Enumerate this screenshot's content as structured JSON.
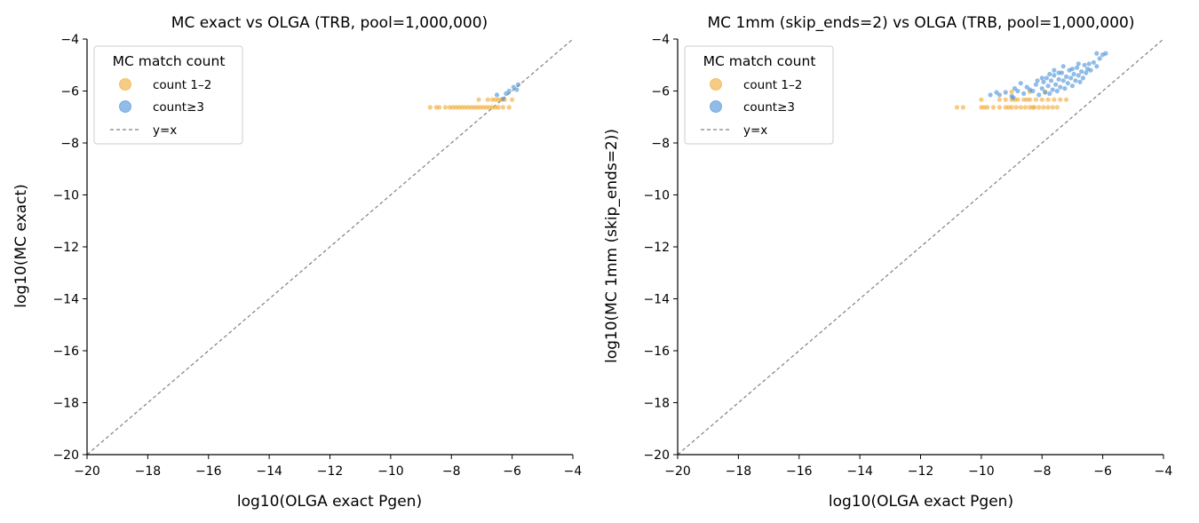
{
  "colors": {
    "count12": "#f0a830",
    "count3": "#4a90d9",
    "diag": "#808080",
    "axis": "#000000"
  },
  "chart_data": [
    {
      "type": "scatter",
      "title": "MC exact vs OLGA  (TRB, pool=1,000,000)",
      "xlabel": "log10(OLGA exact Pgen)",
      "ylabel": "log10(MC exact)",
      "xlim": [
        -20,
        -4
      ],
      "ylim": [
        -20,
        -4
      ],
      "xticks": [
        -20,
        -18,
        -16,
        -14,
        -12,
        -10,
        -8,
        -6,
        -4
      ],
      "yticks": [
        -20,
        -18,
        -16,
        -14,
        -12,
        -10,
        -8,
        -6,
        -4
      ],
      "xtick_labels": [
        "−20",
        "−18",
        "−16",
        "−14",
        "−12",
        "−10",
        "−8",
        "−6",
        "−4"
      ],
      "ytick_labels": [
        "−20",
        "−18",
        "−16",
        "−14",
        "−12",
        "−10",
        "−8",
        "−6",
        "−4"
      ],
      "grid": false,
      "legend": {
        "title": "MC match count",
        "placement": "upper-left",
        "entries": [
          "count 1–2",
          "count≥3",
          "y=x"
        ]
      },
      "diagonal": {
        "name": "y=x",
        "style": "dashed"
      },
      "series": [
        {
          "name": "count 1–2",
          "color": "#f0a830",
          "points": [
            [
              -8.7,
              -6.63
            ],
            [
              -8.5,
              -6.63
            ],
            [
              -8.4,
              -6.63
            ],
            [
              -8.2,
              -6.63
            ],
            [
              -8.05,
              -6.63
            ],
            [
              -7.95,
              -6.63
            ],
            [
              -7.85,
              -6.63
            ],
            [
              -7.75,
              -6.63
            ],
            [
              -7.65,
              -6.63
            ],
            [
              -7.55,
              -6.63
            ],
            [
              -7.45,
              -6.63
            ],
            [
              -7.35,
              -6.63
            ],
            [
              -7.25,
              -6.63
            ],
            [
              -7.15,
              -6.63
            ],
            [
              -7.05,
              -6.63
            ],
            [
              -6.95,
              -6.63
            ],
            [
              -6.85,
              -6.63
            ],
            [
              -6.75,
              -6.63
            ],
            [
              -6.65,
              -6.63
            ],
            [
              -6.55,
              -6.63
            ],
            [
              -6.45,
              -6.63
            ],
            [
              -6.3,
              -6.63
            ],
            [
              -6.1,
              -6.63
            ],
            [
              -7.1,
              -6.33
            ],
            [
              -6.8,
              -6.33
            ],
            [
              -6.65,
              -6.33
            ],
            [
              -6.55,
              -6.33
            ],
            [
              -6.45,
              -6.33
            ],
            [
              -6.35,
              -6.33
            ],
            [
              -6.25,
              -6.33
            ],
            [
              -6.0,
              -6.33
            ]
          ]
        },
        {
          "name": "count≥3",
          "color": "#4a90d9",
          "points": [
            [
              -6.5,
              -6.15
            ],
            [
              -6.3,
              -6.3
            ],
            [
              -6.1,
              -6.0
            ],
            [
              -5.95,
              -5.85
            ],
            [
              -5.8,
              -5.75
            ],
            [
              -5.85,
              -5.95
            ],
            [
              -6.2,
              -6.1
            ]
          ]
        }
      ]
    },
    {
      "type": "scatter",
      "title": "MC 1mm (skip_ends=2) vs OLGA  (TRB, pool=1,000,000)",
      "xlabel": "log10(OLGA exact Pgen)",
      "ylabel": "log10(MC 1mm (skip_ends=2))",
      "xlim": [
        -20,
        -4
      ],
      "ylim": [
        -20,
        -4
      ],
      "xticks": [
        -20,
        -18,
        -16,
        -14,
        -12,
        -10,
        -8,
        -6,
        -4
      ],
      "yticks": [
        -20,
        -18,
        -16,
        -14,
        -12,
        -10,
        -8,
        -6,
        -4
      ],
      "xtick_labels": [
        "−20",
        "−18",
        "−16",
        "−14",
        "−12",
        "−10",
        "−8",
        "−6",
        "−4"
      ],
      "ytick_labels": [
        "−20",
        "−18",
        "−16",
        "−14",
        "−12",
        "−10",
        "−8",
        "−6",
        "−4"
      ],
      "grid": false,
      "legend": {
        "title": "MC match count",
        "placement": "upper-left",
        "entries": [
          "count 1–2",
          "count≥3",
          "y=x"
        ]
      },
      "diagonal": {
        "name": "y=x",
        "style": "dashed"
      },
      "series": [
        {
          "name": "count 1–2",
          "color": "#f0a830",
          "points": [
            [
              -10.8,
              -6.63
            ],
            [
              -10.6,
              -6.63
            ],
            [
              -10.0,
              -6.63
            ],
            [
              -9.8,
              -6.63
            ],
            [
              -9.6,
              -6.63
            ],
            [
              -9.4,
              -6.63
            ],
            [
              -9.2,
              -6.63
            ],
            [
              -9.0,
              -6.63
            ],
            [
              -8.85,
              -6.63
            ],
            [
              -8.7,
              -6.63
            ],
            [
              -8.55,
              -6.63
            ],
            [
              -8.4,
              -6.63
            ],
            [
              -8.25,
              -6.63
            ],
            [
              -8.1,
              -6.63
            ],
            [
              -7.95,
              -6.63
            ],
            [
              -7.8,
              -6.63
            ],
            [
              -7.65,
              -6.63
            ],
            [
              -7.5,
              -6.63
            ],
            [
              -9.9,
              -6.63
            ],
            [
              -9.1,
              -6.63
            ],
            [
              -8.3,
              -6.63
            ],
            [
              -10.0,
              -6.33
            ],
            [
              -9.4,
              -6.33
            ],
            [
              -9.2,
              -6.33
            ],
            [
              -9.0,
              -6.33
            ],
            [
              -8.8,
              -6.33
            ],
            [
              -8.6,
              -6.33
            ],
            [
              -8.4,
              -6.33
            ],
            [
              -8.2,
              -6.33
            ],
            [
              -8.0,
              -6.33
            ],
            [
              -7.8,
              -6.33
            ],
            [
              -7.6,
              -6.33
            ],
            [
              -7.4,
              -6.33
            ],
            [
              -7.2,
              -6.33
            ],
            [
              -8.9,
              -6.33
            ],
            [
              -8.5,
              -6.33
            ],
            [
              -9.0,
              -6.03
            ],
            [
              -8.4,
              -6.03
            ],
            [
              -7.9,
              -6.03
            ]
          ]
        },
        {
          "name": "count≥3",
          "color": "#4a90d9",
          "points": [
            [
              -9.7,
              -6.15
            ],
            [
              -9.4,
              -6.15
            ],
            [
              -9.2,
              -6.05
            ],
            [
              -9.0,
              -6.2
            ],
            [
              -8.8,
              -6.0
            ],
            [
              -8.9,
              -5.9
            ],
            [
              -8.6,
              -6.1
            ],
            [
              -8.5,
              -5.85
            ],
            [
              -8.3,
              -6.0
            ],
            [
              -8.2,
              -5.75
            ],
            [
              -8.1,
              -6.15
            ],
            [
              -8.0,
              -5.9
            ],
            [
              -7.95,
              -5.65
            ],
            [
              -7.9,
              -6.05
            ],
            [
              -7.85,
              -5.5
            ],
            [
              -7.8,
              -5.8
            ],
            [
              -7.75,
              -6.1
            ],
            [
              -7.7,
              -5.6
            ],
            [
              -7.65,
              -5.95
            ],
            [
              -7.6,
              -5.4
            ],
            [
              -7.55,
              -5.75
            ],
            [
              -7.5,
              -6.0
            ],
            [
              -7.45,
              -5.55
            ],
            [
              -7.4,
              -5.85
            ],
            [
              -7.35,
              -5.3
            ],
            [
              -7.3,
              -5.6
            ],
            [
              -7.25,
              -5.9
            ],
            [
              -7.2,
              -5.45
            ],
            [
              -7.15,
              -5.7
            ],
            [
              -7.1,
              -5.2
            ],
            [
              -7.05,
              -5.5
            ],
            [
              -7.0,
              -5.8
            ],
            [
              -6.95,
              -5.35
            ],
            [
              -6.9,
              -5.6
            ],
            [
              -6.85,
              -5.1
            ],
            [
              -6.8,
              -5.4
            ],
            [
              -6.75,
              -5.65
            ],
            [
              -6.7,
              -5.25
            ],
            [
              -6.65,
              -5.5
            ],
            [
              -6.6,
              -5.0
            ],
            [
              -6.55,
              -5.3
            ],
            [
              -6.5,
              -5.15
            ],
            [
              -6.45,
              -4.95
            ],
            [
              -6.4,
              -5.2
            ],
            [
              -6.3,
              -4.9
            ],
            [
              -6.2,
              -5.05
            ],
            [
              -6.1,
              -4.75
            ],
            [
              -6.0,
              -4.6
            ],
            [
              -5.9,
              -4.55
            ],
            [
              -6.2,
              -4.55
            ],
            [
              -8.7,
              -5.7
            ],
            [
              -8.0,
              -5.5
            ],
            [
              -7.6,
              -5.2
            ],
            [
              -7.3,
              -5.05
            ],
            [
              -8.4,
              -5.95
            ],
            [
              -7.0,
              -5.15
            ],
            [
              -9.5,
              -6.05
            ],
            [
              -8.95,
              -6.25
            ],
            [
              -7.75,
              -5.35
            ],
            [
              -8.15,
              -5.6
            ],
            [
              -6.8,
              -4.95
            ],
            [
              -7.45,
              -5.3
            ]
          ]
        }
      ]
    }
  ]
}
